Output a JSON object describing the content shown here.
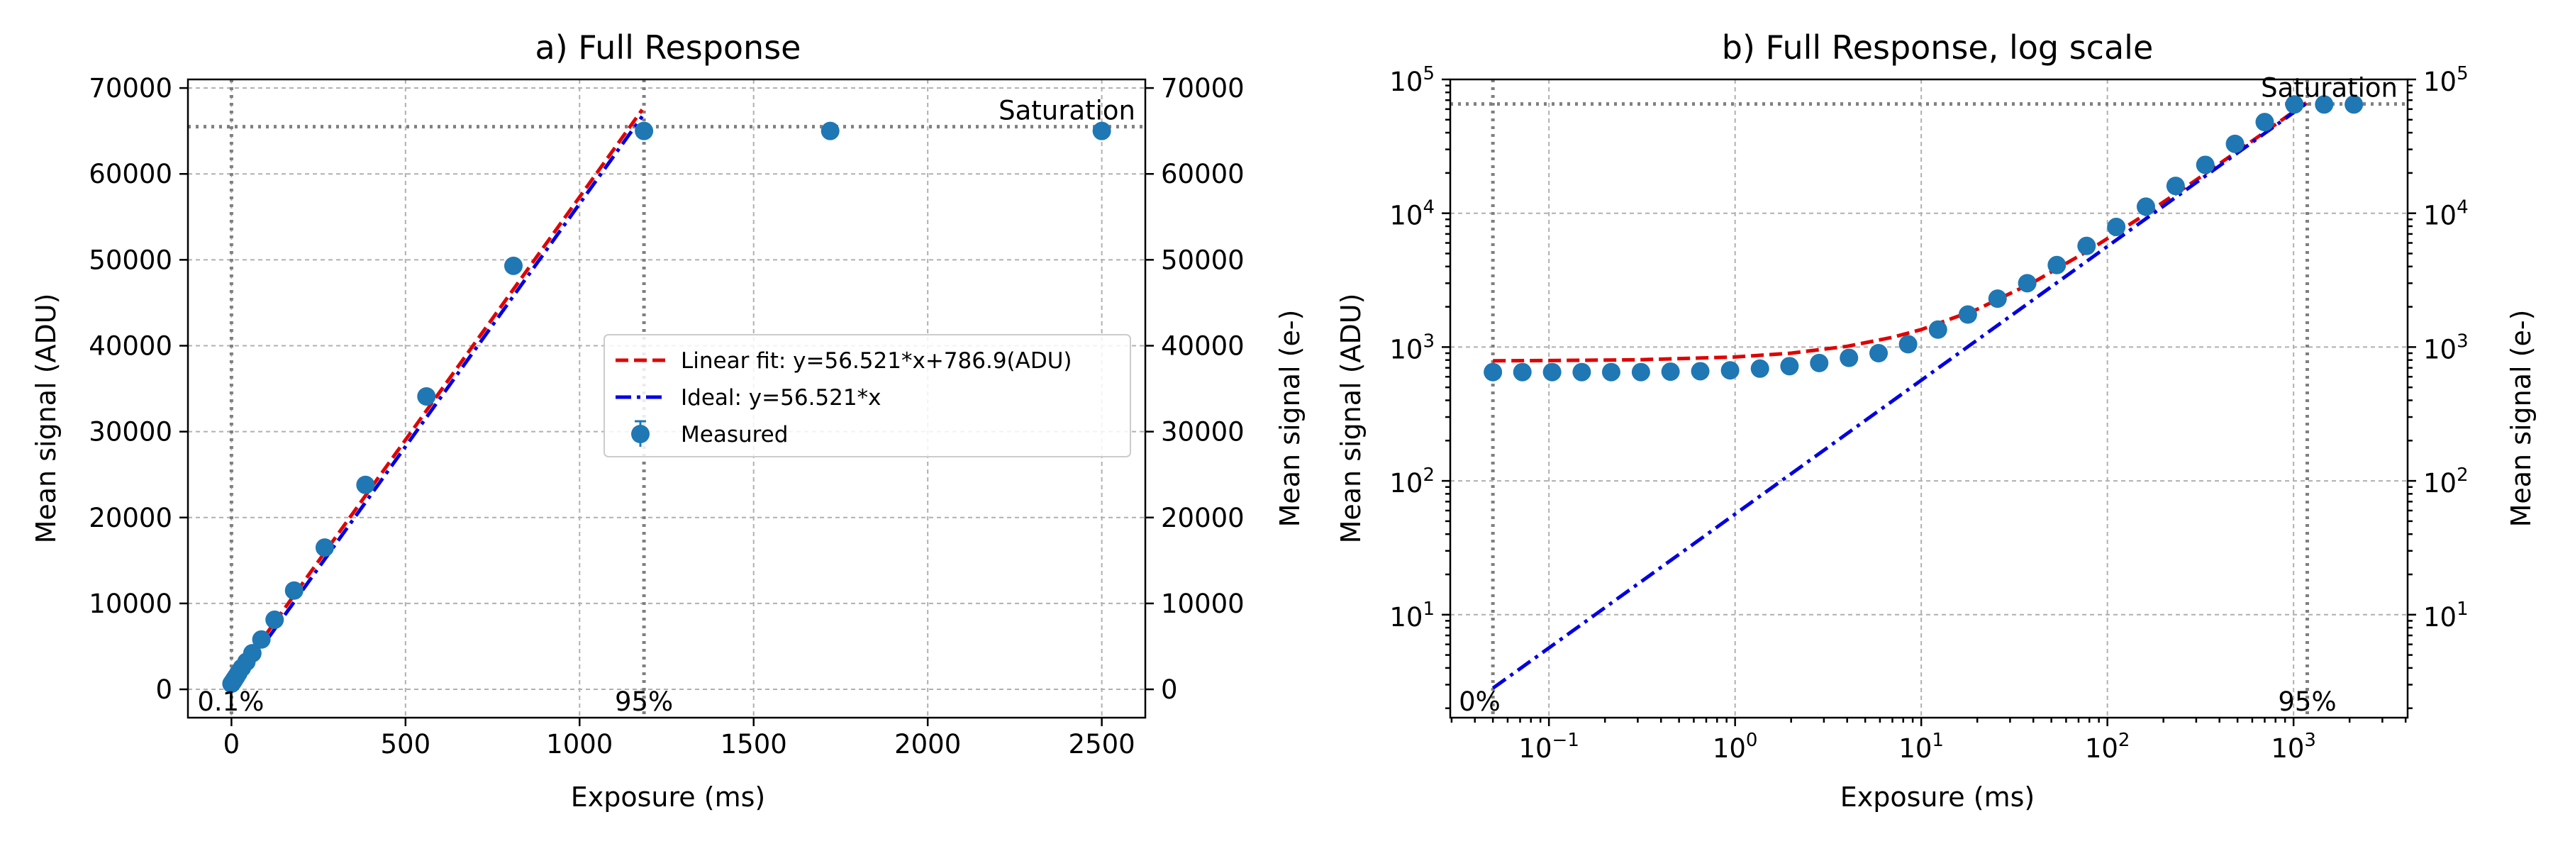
{
  "chart_data": [
    {
      "type": "scatter",
      "title": "a) Full Response",
      "xlabel": "Exposure (ms)",
      "ylabel": "Mean signal (ADU)",
      "ylabel_right": "Mean signal (e-)",
      "xscale": "linear",
      "yscale": "linear",
      "xlim": [
        -125,
        2625
      ],
      "ylim": [
        -3300,
        71000
      ],
      "xticks": [
        0,
        500,
        1000,
        1500,
        2000,
        2500
      ],
      "yticks": [
        0,
        10000,
        20000,
        30000,
        40000,
        50000,
        60000,
        70000
      ],
      "x_tick_labels": [
        "0",
        "500",
        "1000",
        "1500",
        "2000",
        "2500"
      ],
      "y_tick_labels": [
        "0",
        "10000",
        "20000",
        "30000",
        "40000",
        "50000",
        "60000",
        "70000"
      ],
      "y_right_tick_labels": [
        "0",
        "10000",
        "20000",
        "30000",
        "40000",
        "50000",
        "60000",
        "70000"
      ],
      "grid": true,
      "legend_position": "center-right",
      "series": [
        {
          "name": "Linear fit: y=56.521*x+786.9(ADU)",
          "kind": "line",
          "style": "dashed",
          "color": "#e00000",
          "x": [
            0,
            1180
          ],
          "y": [
            786.9,
            67481.7
          ]
        },
        {
          "name": "Ideal: y=56.521*x",
          "kind": "line",
          "style": "dashdot",
          "color": "#0000e0",
          "x": [
            0,
            1180
          ],
          "y": [
            0,
            66694.8
          ]
        },
        {
          "name": "Measured",
          "kind": "scatter",
          "color": "#1f77b4",
          "x": [
            0.05,
            2,
            4,
            6,
            8,
            10,
            14,
            20,
            30,
            43,
            60,
            86,
            124,
            180,
            268,
            385,
            560,
            810,
            1185,
            1720,
            2500
          ],
          "y": [
            650,
            760,
            880,
            1000,
            1130,
            1260,
            1500,
            1900,
            2500,
            3200,
            4200,
            5800,
            8100,
            11500,
            16500,
            23800,
            34100,
            49300,
            65000,
            65000,
            65000
          ]
        }
      ],
      "annotations": {
        "saturation_y": 65500,
        "saturation_label": "Saturation",
        "vline_low_x": 0.05,
        "vline_low_label": "0.1%",
        "vline_high_x": 1185,
        "vline_high_label": "95%"
      },
      "legend": [
        "Linear fit: y=56.521*x+786.9(ADU)",
        "Ideal: y=56.521*x",
        "Measured"
      ]
    },
    {
      "type": "scatter",
      "title": "b) Full Response, log scale",
      "xlabel": "Exposure (ms)",
      "ylabel": "Mean signal (ADU)",
      "ylabel_right": "Mean signal (e-)",
      "xscale": "log",
      "yscale": "log",
      "xlim": [
        0.0295,
        4100
      ],
      "ylim": [
        1.7,
        100000
      ],
      "xticks": [
        0.1,
        1,
        10,
        100,
        1000
      ],
      "yticks": [
        10,
        100,
        1000,
        10000,
        100000
      ],
      "x_tick_labels": [
        {
          "base": "10",
          "exp": "−1"
        },
        {
          "base": "10",
          "exp": "0"
        },
        {
          "base": "10",
          "exp": "1"
        },
        {
          "base": "10",
          "exp": "2"
        },
        {
          "base": "10",
          "exp": "3"
        }
      ],
      "y_tick_labels": [
        {
          "base": "10",
          "exp": "1"
        },
        {
          "base": "10",
          "exp": "2"
        },
        {
          "base": "10",
          "exp": "3"
        },
        {
          "base": "10",
          "exp": "4"
        },
        {
          "base": "10",
          "exp": "5"
        }
      ],
      "grid": true,
      "series": [
        {
          "name": "Linear fit: y=56.521*x+786.9(ADU)",
          "kind": "line",
          "style": "dashed",
          "color": "#e00000",
          "x": [
            0.05,
            0.1,
            0.3,
            1,
            2,
            4,
            7,
            10,
            20,
            40,
            80,
            150,
            300,
            600,
            1180
          ],
          "y": [
            789.7,
            792.6,
            803.9,
            843.4,
            899.9,
            1013,
            1182.5,
            1352.1,
            1917.3,
            3047.7,
            5308.6,
            9265.1,
            17743.2,
            34699.5,
            67481.7
          ]
        },
        {
          "name": "Ideal: y=56.521*x",
          "kind": "line",
          "style": "dashdot",
          "color": "#0000e0",
          "x": [
            0.05,
            1180
          ],
          "y": [
            2.826,
            66694.8
          ]
        },
        {
          "name": "Measured",
          "kind": "scatter",
          "color": "#1f77b4",
          "x": [
            0.05,
            0.072,
            0.104,
            0.15,
            0.216,
            0.312,
            0.45,
            0.65,
            0.94,
            1.36,
            1.96,
            2.83,
            4.09,
            5.9,
            8.5,
            12.3,
            17.8,
            25.7,
            37.1,
            53.5,
            77.3,
            111.6,
            161,
            232.5,
            335.7,
            484.7,
            700,
            1011,
            1460,
            2108
          ],
          "y": [
            650,
            650,
            650,
            650,
            650,
            650,
            655,
            660,
            670,
            690,
            720,
            760,
            830,
            900,
            1050,
            1350,
            1750,
            2300,
            3000,
            4100,
            5700,
            7900,
            11200,
            16000,
            23000,
            33000,
            48000,
            65000,
            65000,
            65000
          ]
        }
      ],
      "annotations": {
        "saturation_y": 65500,
        "saturation_label": "Saturation",
        "vline_low_x": 0.05,
        "vline_low_label": "0%",
        "vline_high_x": 1185,
        "vline_high_label": "95%"
      }
    }
  ]
}
